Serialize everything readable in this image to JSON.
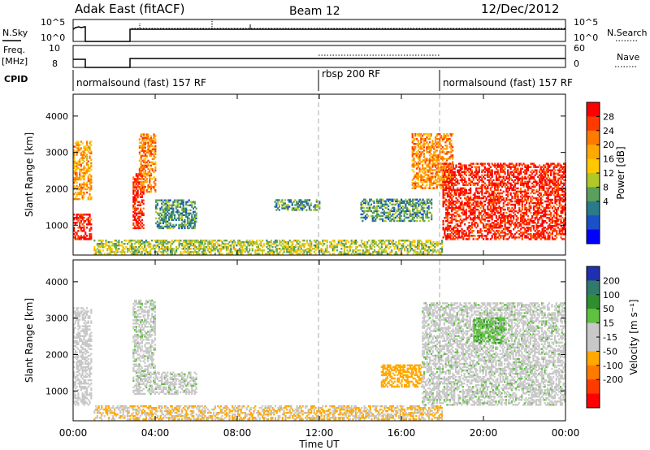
{
  "header": {
    "radar": "Adak East (fitACF)",
    "beam": "Beam 12",
    "date": "12/Dec/2012"
  },
  "top_panels": {
    "nsky_label": "N.Sky",
    "nsky_ticks": [
      "10^5",
      "10^0"
    ],
    "nsearch_label": "N.Search",
    "nsearch_ticks": [
      "10^5",
      "10^0"
    ],
    "freq_label": "Freq.",
    "freq_unit": "[MHz]",
    "freq_ticks": [
      "10",
      "8"
    ],
    "nave_label": "Nave",
    "nave_ticks": [
      "60",
      "0"
    ],
    "cpid_label": "CPID"
  },
  "cpid": [
    {
      "start_h": 0,
      "label": "normalsound (fast) 157 RF"
    },
    {
      "start_h": 12,
      "label": "rbsp 200 RF"
    },
    {
      "start_h": 18,
      "label": "normalsound (fast) 157 RF"
    }
  ],
  "axes": {
    "ylabel": "Slant Range [km]",
    "yticks": [
      "4000",
      "3000",
      "2000",
      "1000"
    ],
    "xticks": [
      "00:00",
      "04:00",
      "08:00",
      "12:00",
      "16:00",
      "20:00",
      "00:00"
    ],
    "xlabel": "Time UT"
  },
  "power_colorbar": {
    "label": "Power [dB]",
    "ticks": [
      "28",
      "24",
      "20",
      "16",
      "12",
      "8",
      "4"
    ],
    "colors": [
      "#ff0000",
      "#ff3a00",
      "#ff7a00",
      "#ffa800",
      "#ffc800",
      "#b0c828",
      "#5aa05a",
      "#2a7a8a",
      "#1a50c8",
      "#0000ff"
    ]
  },
  "velocity_colorbar": {
    "label": "Velocity [m s⁻¹]",
    "ticks": [
      "200",
      "100",
      "50",
      "15",
      "-15",
      "-50",
      "-100",
      "-200"
    ],
    "colors": [
      "#2030b0",
      "#2f7a6a",
      "#2f8f2f",
      "#60c040",
      "#c8c8c8",
      "#c8c8c8",
      "#ffa800",
      "#ff7a00",
      "#ff3a00",
      "#ff0000"
    ]
  },
  "chart_data": {
    "type": "heatmap",
    "x_unit": "hours UT",
    "xlim": [
      0,
      24
    ],
    "ylim": [
      180,
      4600
    ],
    "data_gaps_h": [
      [
        1.1,
        2.8
      ]
    ],
    "power_echo_regions": [
      {
        "t": [
          0.0,
          0.9
        ],
        "r": [
          600,
          1300
        ],
        "dB": 26
      },
      {
        "t": [
          0.0,
          0.9
        ],
        "r": [
          1700,
          3300
        ],
        "dB": 18
      },
      {
        "t": [
          2.9,
          3.4
        ],
        "r": [
          900,
          2400
        ],
        "dB": 26
      },
      {
        "t": [
          3.2,
          4.0
        ],
        "r": [
          1900,
          3500
        ],
        "dB": 20
      },
      {
        "t": [
          4.0,
          6.0
        ],
        "r": [
          900,
          1700
        ],
        "dB": 8
      },
      {
        "t": [
          9.8,
          12.0
        ],
        "r": [
          1400,
          1700
        ],
        "dB": 8
      },
      {
        "t": [
          1.0,
          18.0
        ],
        "r": [
          200,
          600
        ],
        "dB": 12
      },
      {
        "t": [
          14.0,
          17.5
        ],
        "r": [
          1100,
          1700
        ],
        "dB": 8
      },
      {
        "t": [
          16.5,
          18.5
        ],
        "r": [
          2000,
          3500
        ],
        "dB": 20
      },
      {
        "t": [
          18.0,
          24.0
        ],
        "r": [
          600,
          2700
        ],
        "dB": 26
      }
    ],
    "velocity_echo_regions": [
      {
        "t": [
          0.0,
          0.9
        ],
        "r": [
          600,
          3300
        ],
        "ms": -30
      },
      {
        "t": [
          2.9,
          4.0
        ],
        "r": [
          900,
          3500
        ],
        "ms": 0
      },
      {
        "t": [
          4.0,
          6.0
        ],
        "r": [
          900,
          1500
        ],
        "ms": 0
      },
      {
        "t": [
          1.0,
          18.0
        ],
        "r": [
          200,
          600
        ],
        "ms": -50
      },
      {
        "t": [
          15.0,
          17.0
        ],
        "r": [
          1100,
          1700
        ],
        "ms": -80
      },
      {
        "t": [
          17.0,
          24.0
        ],
        "r": [
          600,
          3400
        ],
        "ms": 0
      },
      {
        "t": [
          19.5,
          21.0
        ],
        "r": [
          2300,
          3000
        ],
        "ms": 40
      }
    ]
  }
}
